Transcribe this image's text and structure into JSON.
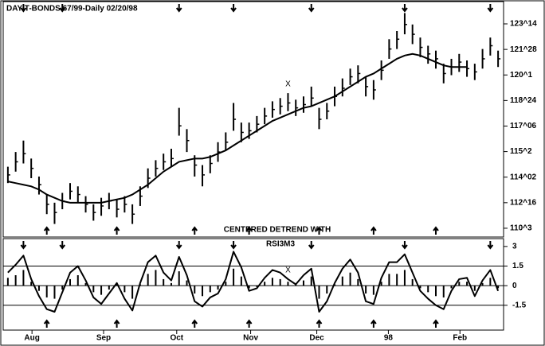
{
  "chart_data": [
    {
      "type": "ohlc",
      "title": "DAY T-BONDS 67/99-Daily   02/20/98",
      "annotations": [
        "CENTERED DETREND WITH",
        "RSI3M3"
      ],
      "xlim": [
        -0.5,
        63.5
      ],
      "ylim": [
        110.4,
        124.8
      ],
      "color": "#000000",
      "yticks": [
        {
          "value": 123.4375,
          "label": "123^14"
        },
        {
          "value": 121.875,
          "label": "121^28"
        },
        {
          "value": 120.3125,
          "label": "120^1"
        },
        {
          "value": 118.75,
          "label": "118^24"
        },
        {
          "value": 117.1875,
          "label": "117^06"
        },
        {
          "value": 115.625,
          "label": "115^2"
        },
        {
          "value": 114.0625,
          "label": "114^02"
        },
        {
          "value": 112.5,
          "label": "112^16"
        },
        {
          "value": 110.9375,
          "label": "110^3"
        }
      ],
      "high": [
        114.7,
        115.6,
        116.3,
        115.2,
        114.1,
        113.0,
        112.5,
        113.1,
        113.7,
        113.5,
        112.9,
        112.4,
        112.8,
        113.1,
        112.7,
        112.9,
        112.4,
        113.5,
        114.6,
        115.1,
        115.5,
        115.8,
        118.3,
        117.0,
        115.4,
        114.8,
        115.4,
        116.2,
        116.8,
        118.6,
        117.4,
        117.4,
        117.8,
        118.3,
        118.7,
        118.9,
        119.2,
        118.8,
        119.0,
        119.6,
        118.3,
        118.6,
        119.6,
        120.1,
        120.7,
        120.9,
        120.2,
        120.0,
        121.2,
        122.5,
        123.0,
        124.1,
        123.4,
        122.6,
        122.1,
        121.8,
        121.0,
        121.3,
        121.6,
        121.2,
        121.0,
        121.9,
        122.6,
        121.8
      ],
      "low": [
        113.7,
        114.4,
        114.9,
        114.0,
        113.0,
        111.8,
        111.2,
        112.1,
        112.7,
        112.5,
        111.9,
        111.4,
        111.7,
        112.1,
        111.6,
        111.9,
        111.2,
        112.3,
        113.4,
        114.1,
        114.5,
        114.7,
        116.6,
        115.6,
        114.1,
        113.5,
        114.3,
        115.0,
        115.7,
        116.9,
        116.2,
        116.4,
        116.8,
        117.3,
        117.7,
        117.9,
        118.1,
        117.8,
        118.0,
        118.4,
        117.0,
        117.6,
        118.4,
        119.0,
        119.7,
        119.8,
        119.0,
        118.8,
        120.0,
        121.3,
        121.9,
        122.8,
        122.2,
        121.4,
        121.0,
        120.7,
        119.8,
        120.3,
        120.5,
        120.2,
        120.0,
        120.7,
        121.5,
        120.8
      ],
      "close": [
        114.2,
        115.0,
        115.5,
        114.6,
        113.6,
        112.4,
        111.9,
        112.6,
        113.2,
        113.0,
        112.4,
        111.9,
        112.3,
        112.6,
        112.1,
        112.4,
        111.8,
        112.9,
        114.0,
        114.6,
        115.0,
        115.2,
        117.2,
        116.3,
        114.8,
        114.2,
        114.9,
        115.6,
        116.2,
        117.6,
        116.8,
        116.9,
        117.3,
        117.8,
        118.2,
        118.4,
        118.6,
        118.3,
        118.5,
        118.9,
        117.6,
        118.1,
        119.0,
        119.5,
        120.2,
        120.4,
        119.6,
        119.4,
        120.6,
        121.9,
        122.5,
        123.4,
        122.8,
        122.0,
        121.6,
        121.3,
        120.4,
        120.8,
        121.1,
        120.7,
        120.5,
        121.3,
        122.1,
        121.3
      ],
      "moving_average": [
        113.8,
        113.7,
        113.6,
        113.5,
        113.3,
        113.0,
        112.8,
        112.6,
        112.5,
        112.5,
        112.5,
        112.5,
        112.5,
        112.6,
        112.7,
        112.8,
        113.0,
        113.3,
        113.6,
        114.0,
        114.4,
        114.7,
        115.0,
        115.1,
        115.2,
        115.2,
        115.3,
        115.5,
        115.7,
        116.0,
        116.3,
        116.6,
        116.9,
        117.2,
        117.5,
        117.7,
        117.9,
        118.1,
        118.3,
        118.4,
        118.6,
        118.8,
        119.0,
        119.3,
        119.6,
        119.9,
        120.2,
        120.4,
        120.7,
        121.0,
        121.3,
        121.5,
        121.6,
        121.5,
        121.3,
        121.1,
        120.9,
        120.8,
        120.8,
        120.8,
        null,
        null,
        null,
        null
      ],
      "down_arrows": [
        2,
        7,
        22,
        29,
        39,
        51,
        62
      ],
      "up_arrows": [
        5,
        14,
        24,
        31,
        40,
        47,
        55
      ],
      "marker": {
        "label": "X",
        "index": 36
      }
    },
    {
      "type": "oscillator",
      "xlim": [
        -0.5,
        63.5
      ],
      "ylim": [
        -3.4,
        3.6
      ],
      "color": "#000000",
      "yticks": [
        3,
        1.5,
        0,
        -1.5
      ],
      "levels": [
        1.5,
        0,
        -1.5
      ],
      "xticks": [
        {
          "value": 3.1,
          "label": "Aug"
        },
        {
          "value": 12.3,
          "label": "Sep"
        },
        {
          "value": 21.7,
          "label": "Oct"
        },
        {
          "value": 31.2,
          "label": "Nov"
        },
        {
          "value": 39.7,
          "label": "Dec"
        },
        {
          "value": 48.9,
          "label": "98"
        },
        {
          "value": 58.1,
          "label": "Feb"
        }
      ],
      "line": [
        1.0,
        1.6,
        2.3,
        0.5,
        -0.8,
        -1.8,
        -2.0,
        -0.5,
        1.0,
        1.5,
        0.4,
        -0.9,
        -1.4,
        -0.6,
        0.2,
        -1.0,
        -1.9,
        0.2,
        1.8,
        2.3,
        1.0,
        0.4,
        2.2,
        0.8,
        -1.2,
        -1.6,
        -0.9,
        -0.6,
        0.5,
        2.6,
        1.4,
        -0.4,
        -0.2,
        0.6,
        1.2,
        1.0,
        0.5,
        0.1,
        0.8,
        1.3,
        -2.0,
        -1.2,
        0.2,
        1.3,
        2.0,
        1.0,
        -1.2,
        -1.4,
        0.6,
        1.8,
        1.8,
        2.4,
        1.0,
        -0.4,
        -1.0,
        -1.5,
        -1.8,
        -0.4,
        0.5,
        0.6,
        -0.8,
        0.4,
        1.2,
        -0.4
      ],
      "histogram": [
        0.6,
        0.8,
        1.2,
        0.3,
        -0.4,
        -0.9,
        -1.0,
        -0.3,
        0.5,
        0.8,
        0.2,
        -0.5,
        -0.7,
        -0.3,
        0.1,
        -0.5,
        -1.0,
        0.1,
        0.9,
        1.2,
        0.5,
        0.2,
        1.1,
        0.4,
        -0.6,
        -0.8,
        -0.5,
        -0.3,
        0.3,
        1.3,
        0.7,
        -0.2,
        -0.1,
        0.3,
        0.6,
        0.5,
        0.3,
        0.1,
        0.4,
        0.7,
        -1.0,
        -0.6,
        0.1,
        0.7,
        1.0,
        0.5,
        -0.6,
        -0.7,
        0.3,
        0.9,
        0.9,
        1.2,
        0.5,
        -0.2,
        -0.5,
        -0.8,
        -0.9,
        -0.2,
        0.3,
        0.3,
        -0.4,
        0.2,
        0.6,
        -0.2
      ]
    }
  ]
}
